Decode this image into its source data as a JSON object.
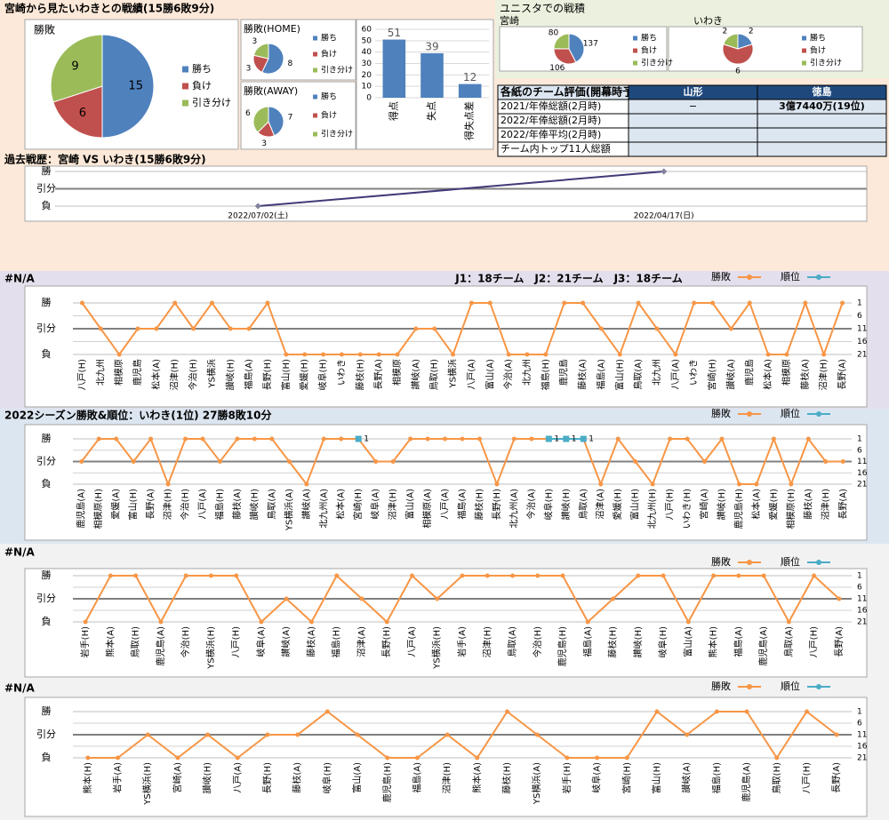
{
  "header": {
    "title": "宮崎から見たいわきとの戦績(15勝6敗9分)",
    "stadium_title": "ユニスタでの戦積"
  },
  "chart_data": [
    {
      "type": "pie",
      "title": "勝敗",
      "categories": [
        "勝ち",
        "負け",
        "引き分け"
      ],
      "values": [
        15,
        6,
        9
      ],
      "colors": [
        "#4f81bd",
        "#c0504d",
        "#9bbb59"
      ]
    },
    {
      "type": "pie",
      "title": "勝敗(HOME)",
      "categories": [
        "勝ち",
        "負け",
        "引き分け"
      ],
      "values": [
        8,
        3,
        3
      ],
      "colors": [
        "#4f81bd",
        "#c0504d",
        "#9bbb59"
      ]
    },
    {
      "type": "pie",
      "title": "勝敗(AWAY)",
      "categories": [
        "勝ち",
        "負け",
        "引き分け"
      ],
      "values": [
        7,
        3,
        6
      ],
      "colors": [
        "#4f81bd",
        "#c0504d",
        "#9bbb59"
      ]
    },
    {
      "type": "bar",
      "categories": [
        "得点",
        "失点",
        "得失点差"
      ],
      "values": [
        51,
        39,
        12
      ],
      "color": "#4f81bd",
      "ylim": [
        0,
        60
      ],
      "yticks": [
        0,
        10,
        20,
        30,
        40,
        50,
        60
      ],
      "grid": true
    },
    {
      "type": "pie",
      "title": "宮崎",
      "categories": [
        "勝ち",
        "負け",
        "引き分け"
      ],
      "values": [
        137,
        106,
        80
      ],
      "colors": [
        "#4f81bd",
        "#c0504d",
        "#9bbb59"
      ]
    },
    {
      "type": "pie",
      "title": "いわき",
      "categories": [
        "勝ち",
        "負け",
        "引き分け"
      ],
      "values": [
        2,
        6,
        2
      ],
      "colors": [
        "#4f81bd",
        "#c0504d",
        "#9bbb59"
      ]
    },
    {
      "type": "line",
      "title": "過去戦歴：宮崎 VS いわき(15勝6敗9分)",
      "categories": [
        "2022/07/02(土)",
        "2022/04/17(日)"
      ],
      "series": [
        {
          "name": "勝敗",
          "color": "#403a78",
          "values": [
            -1,
            1
          ]
        }
      ],
      "ylim": [
        -1,
        1
      ],
      "yticks": [
        {
          "value": 1,
          "label": "勝"
        },
        {
          "value": 0,
          "label": "引分"
        },
        {
          "value": -1,
          "label": "負"
        }
      ],
      "grid": true
    },
    {
      "type": "line",
      "title": "#N/A",
      "annotation": "J1：18チーム　J2：21チーム　J3：18チーム",
      "categories": [
        "八戸(H)",
        "北九州",
        "相模原",
        "鹿児島",
        "松本(A)",
        "沼津(H)",
        "今治(H)",
        "YS横浜",
        "讃岐(H)",
        "福島(A)",
        "長野(H)",
        "富山(H)",
        "愛媛(H)",
        "岐阜(H)",
        "いわき",
        "藤枝(H)",
        "長野(A)",
        "相模原",
        "讃岐(A)",
        "鳥取(H)",
        "YS横浜",
        "八戸(A)",
        "富山(A)",
        "今治(A)",
        "北九州",
        "福島(H)",
        "鹿児島",
        "藤枝(A)",
        "福島(A)",
        "富山(H)",
        "鳥取(A)",
        "北九州",
        "八戸(A)",
        "いわき",
        "宮崎(H)",
        "讃岐(A)",
        "鹿児島",
        "松本(A)",
        "相模原",
        "藤枝(A)",
        "沼津(H)",
        "長野(A)"
      ],
      "series": [
        {
          "name": "勝敗",
          "color": "#f79646",
          "values": [
            1,
            0,
            -1,
            0,
            0,
            1,
            0,
            1,
            0,
            0,
            1,
            -1,
            -1,
            -1,
            -1,
            -1,
            -1,
            -1,
            0,
            0,
            -1,
            1,
            1,
            -1,
            -1,
            -1,
            1,
            1,
            0,
            -1,
            1,
            0,
            -1,
            1,
            1,
            0,
            1,
            -1,
            -1,
            1,
            -1,
            1
          ]
        },
        {
          "name": "順位",
          "color": "#4bacc6",
          "axis": "y2",
          "values": [
            null,
            null,
            null,
            null,
            null,
            null,
            null,
            null,
            null,
            null,
            null,
            null,
            null,
            null,
            null,
            null,
            null,
            null,
            null,
            null,
            null,
            null,
            null,
            null,
            null,
            null,
            null,
            null,
            null,
            null,
            null,
            null,
            null,
            null,
            null,
            null,
            null,
            null,
            null,
            null,
            null,
            null
          ]
        }
      ],
      "ylim": [
        -1,
        1
      ],
      "yticks": [
        {
          "value": 1,
          "label": "勝"
        },
        {
          "value": 0,
          "label": "引分"
        },
        {
          "value": -1,
          "label": "負"
        }
      ],
      "y2lim": [
        1,
        21
      ],
      "y2_inverted": true,
      "y2ticks": [
        1,
        6,
        11,
        16,
        21
      ],
      "grid": true
    },
    {
      "type": "line",
      "title": "2022シーズン勝敗&順位：いわき(1位) 27勝8敗10分",
      "categories": [
        "鹿児島(A)",
        "相模原(H)",
        "愛媛(A)",
        "富山(H)",
        "長野(A)",
        "沼津(H)",
        "今治(H)",
        "八戸(A)",
        "福島(H)",
        "藤枝(A)",
        "讃岐(H)",
        "鳥取(A)",
        "YS横浜(A)",
        "讃岐(A)",
        "北九州(A)",
        "松本(A)",
        "宮崎(H)",
        "岐阜(A)",
        "沼津(H)",
        "富山(A)",
        "相模原(A)",
        "八戸(A)",
        "福島(A)",
        "藤枝(H)",
        "長野(H)",
        "北九州(A)",
        "今治(A)",
        "岐阜(H)",
        "讃岐(H)",
        "鳥取(A)",
        "沼津(A)",
        "愛媛(H)",
        "富山(H)",
        "北九州(H)",
        "八戸(H)",
        "いわき(H)",
        "宮崎(A)",
        "讃岐(H)",
        "鹿児島(H)",
        "松本(A)",
        "愛媛(H)",
        "相模原(H)",
        "藤枝(A)",
        "沼津(H)",
        "長野(A)"
      ],
      "series": [
        {
          "name": "勝敗",
          "color": "#f79646",
          "values": [
            0,
            1,
            1,
            0,
            1,
            -1,
            1,
            1,
            0,
            1,
            1,
            1,
            0,
            -1,
            1,
            1,
            1,
            0,
            0,
            1,
            1,
            1,
            1,
            1,
            -1,
            1,
            1,
            1,
            1,
            1,
            -1,
            1,
            0,
            -1,
            1,
            1,
            0,
            1,
            -1,
            -1,
            1,
            -1,
            1,
            0,
            0
          ]
        },
        {
          "name": "順位",
          "color": "#4bacc6",
          "axis": "y2",
          "values": [
            null,
            null,
            null,
            null,
            null,
            null,
            null,
            null,
            null,
            null,
            null,
            null,
            null,
            null,
            null,
            null,
            1,
            null,
            null,
            null,
            null,
            null,
            null,
            null,
            null,
            null,
            null,
            1,
            1,
            1,
            null,
            null,
            null,
            null,
            null,
            null,
            null,
            null,
            null,
            null,
            null,
            null,
            null,
            null,
            null
          ]
        }
      ],
      "ylim": [
        -1,
        1
      ],
      "yticks": [
        {
          "value": 1,
          "label": "勝"
        },
        {
          "value": 0,
          "label": "引分"
        },
        {
          "value": -1,
          "label": "負"
        }
      ],
      "y2lim": [
        1,
        21
      ],
      "y2_inverted": true,
      "y2ticks": [
        1,
        6,
        11,
        16,
        21
      ],
      "grid": true
    },
    {
      "type": "line",
      "title": "#N/A",
      "categories": [
        "岩手(H)",
        "熊本(A)",
        "鳥取(H)",
        "鹿児島(A)",
        "今治(H)",
        "YS横浜(H)",
        "八戸(H)",
        "岐阜(A)",
        "讃岐(A)",
        "藤枝(A)",
        "福島(H)",
        "沼津(A)",
        "長野(H)",
        "八戸(A)",
        "YS横浜(H)",
        "岩手(A)",
        "沼津(H)",
        "鳥取(A)",
        "今治(H)",
        "鹿児島(H)",
        "福島(A)",
        "藤枝(H)",
        "讃岐(H)",
        "岐阜(H)",
        "富山(A)",
        "熊本(H)",
        "福島(A)",
        "鹿児島(A)",
        "鳥取(A)",
        "八戸(H)",
        "長野(A)"
      ],
      "series": [
        {
          "name": "勝敗",
          "color": "#f79646",
          "values": [
            -1,
            1,
            1,
            -1,
            1,
            1,
            1,
            -1,
            0,
            -1,
            1,
            0,
            -1,
            1,
            0,
            1,
            1,
            1,
            1,
            1,
            -1,
            0,
            1,
            1,
            -1,
            1,
            1,
            1,
            -1,
            1,
            0
          ]
        },
        {
          "name": "順位",
          "color": "#4bacc6",
          "axis": "y2",
          "values": [
            null,
            null,
            null,
            null,
            null,
            null,
            null,
            null,
            null,
            null,
            null,
            null,
            null,
            null,
            null,
            null,
            null,
            null,
            null,
            null,
            null,
            null,
            null,
            null,
            null,
            null,
            null,
            null,
            null,
            null,
            null
          ]
        }
      ],
      "ylim": [
        -1,
        1
      ],
      "yticks": [
        {
          "value": 1,
          "label": "勝"
        },
        {
          "value": 0,
          "label": "引分"
        },
        {
          "value": -1,
          "label": "負"
        }
      ],
      "y2lim": [
        1,
        21
      ],
      "y2_inverted": true,
      "y2ticks": [
        1,
        6,
        11,
        16,
        21
      ],
      "grid": true
    },
    {
      "type": "line",
      "title": "#N/A",
      "categories": [
        "熊本(H)",
        "岩手(A)",
        "YS横浜(H)",
        "宮崎(A)",
        "讃岐(H)",
        "八戸(A)",
        "長野(H)",
        "藤枝(A)",
        "岐阜(H)",
        "富山(A)",
        "鹿児島(H)",
        "福島(A)",
        "沼津(H)",
        "熊本(A)",
        "藤枝(H)",
        "YS横浜(A)",
        "岩手(H)",
        "岐阜(A)",
        "宮崎(H)",
        "富山(H)",
        "讃岐(A)",
        "福島(H)",
        "鹿児島(A)",
        "鳥取(H)",
        "八戸(H)",
        "長野(A)"
      ],
      "series": [
        {
          "name": "勝敗",
          "color": "#f79646",
          "values": [
            -1,
            -1,
            0,
            -1,
            0,
            -1,
            0,
            0,
            1,
            0,
            -1,
            -1,
            0,
            -1,
            1,
            0,
            -1,
            -1,
            -1,
            1,
            0,
            1,
            1,
            -1,
            1,
            0
          ]
        },
        {
          "name": "順位",
          "color": "#4bacc6",
          "axis": "y2",
          "values": [
            null,
            null,
            null,
            null,
            null,
            null,
            null,
            null,
            null,
            null,
            null,
            null,
            null,
            null,
            null,
            null,
            null,
            null,
            null,
            null,
            null,
            null,
            null,
            null,
            null,
            null
          ]
        }
      ],
      "ylim": [
        -1,
        1
      ],
      "yticks": [
        {
          "value": 1,
          "label": "勝"
        },
        {
          "value": 0,
          "label": "引分"
        },
        {
          "value": -1,
          "label": "負"
        }
      ],
      "y2lim": [
        1,
        21
      ],
      "y2_inverted": true,
      "y2ticks": [
        1,
        6,
        11,
        16,
        21
      ],
      "grid": true
    }
  ],
  "table": {
    "title": "各紙のチーム評価(開幕時予想)",
    "columns": [
      "山形",
      "徳島"
    ],
    "rows": [
      [
        "2021/年俸総額(2月時)",
        "−",
        "3億7440万(19位)"
      ],
      [
        "2022/年俸総額(2月時)",
        null,
        null
      ],
      [
        "2022/年俸平均(2月時)",
        null,
        null
      ],
      [
        "チーム内トップ11人総額",
        null,
        null
      ]
    ]
  }
}
